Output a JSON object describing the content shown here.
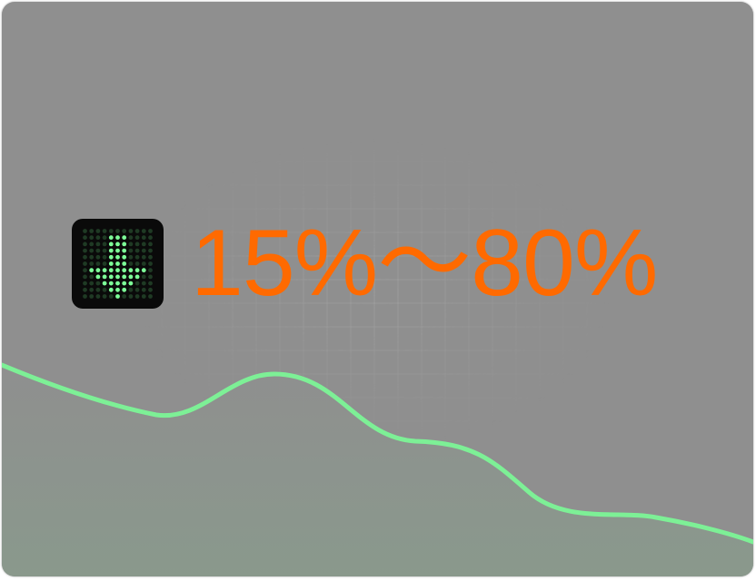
{
  "headline": {
    "text": "15%～80%",
    "color": "#ff6a00"
  },
  "icon": {
    "name": "arrow-down-icon",
    "background": "#0a0a0a",
    "dot_on_color": "#7dff98",
    "dot_off_color": "#1f3a24"
  },
  "card": {
    "background": "#8f8f8f",
    "curve_color": "#7df096"
  }
}
